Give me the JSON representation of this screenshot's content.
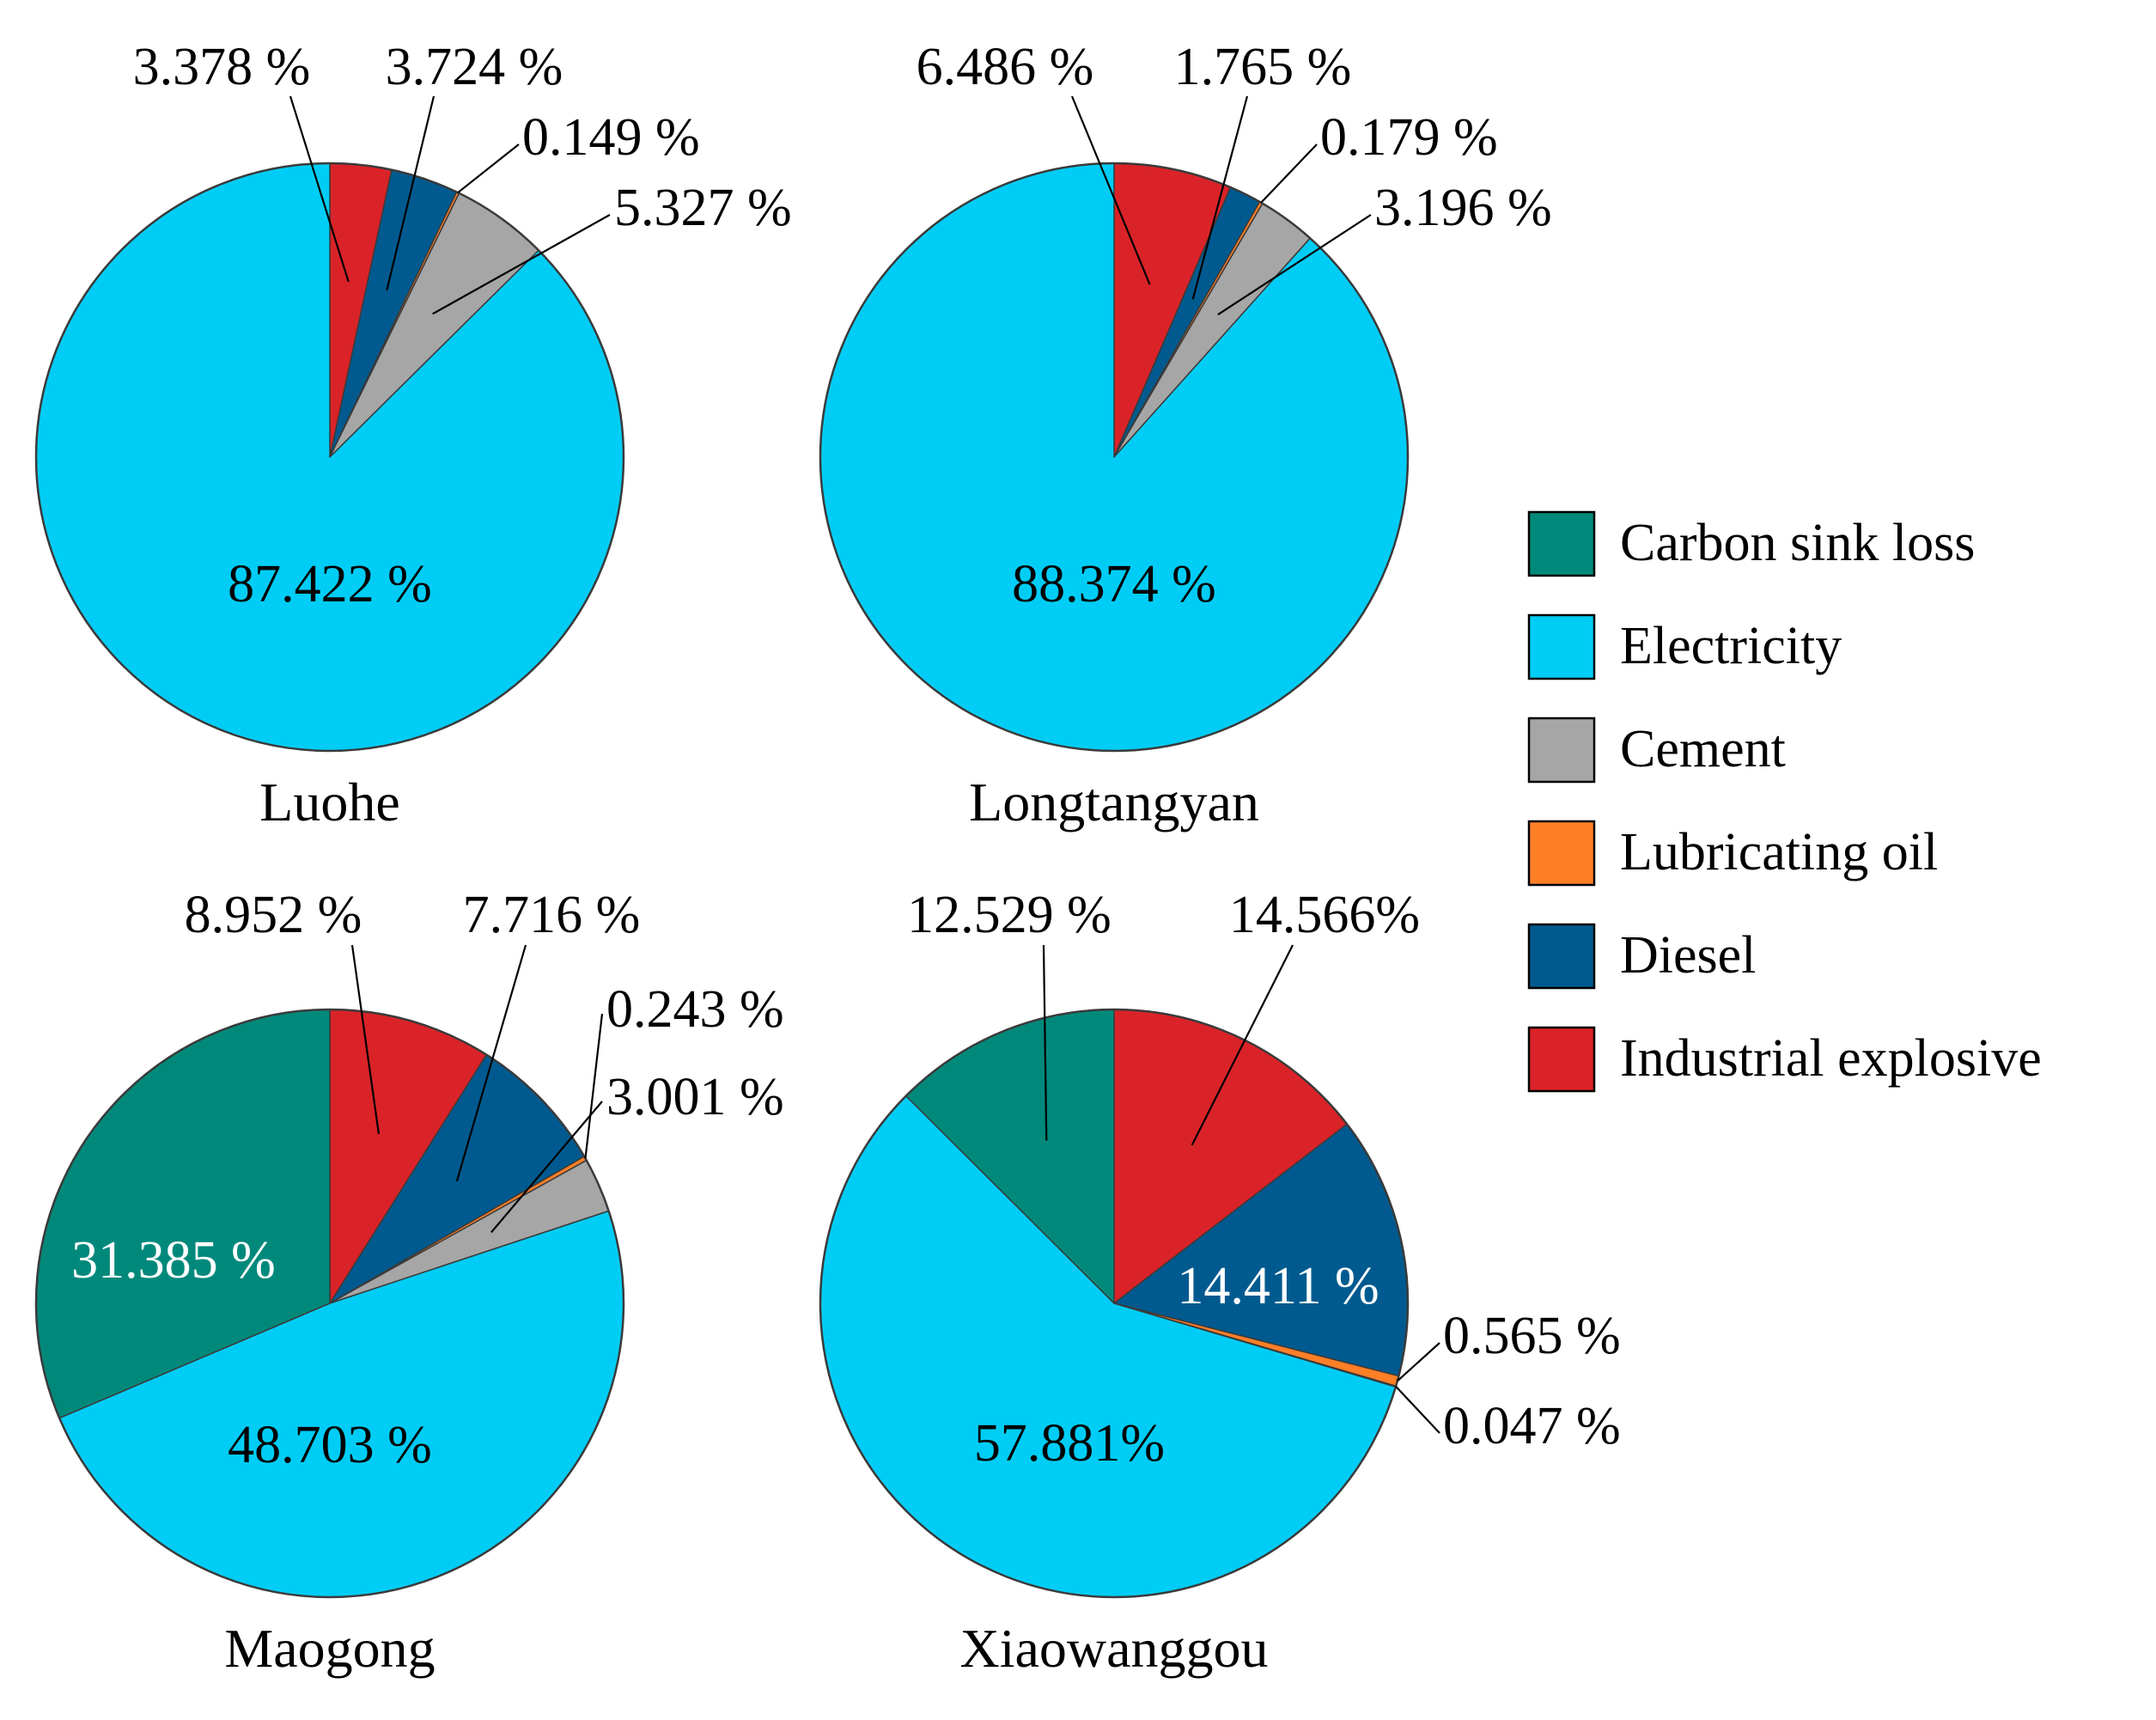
{
  "colors": {
    "Carbon sink loss": "#00897B",
    "Electricity": "#00CDF5",
    "Cement": "#A6A6A6",
    "Lubricating oil": "#FF7F27",
    "Diesel": "#005A8F",
    "Industrial explosive": "#DA2328"
  },
  "legend": [
    "Carbon sink loss",
    "Electricity",
    "Cement",
    "Lubricating oil",
    "Diesel",
    "Industrial explosive"
  ],
  "chart_data": [
    {
      "type": "pie",
      "title": "Luohe",
      "slices": [
        {
          "category": "Industrial explosive",
          "value": 3.378,
          "label": "3.378 %"
        },
        {
          "category": "Diesel",
          "value": 3.724,
          "label": "3.724 %"
        },
        {
          "category": "Lubricating oil",
          "value": 0.149,
          "label": "0.149 %"
        },
        {
          "category": "Cement",
          "value": 5.327,
          "label": "5.327 %"
        },
        {
          "category": "Electricity",
          "value": 87.422,
          "label": "87.422 %"
        }
      ]
    },
    {
      "type": "pie",
      "title": "Longtangyan",
      "slices": [
        {
          "category": "Industrial explosive",
          "value": 6.486,
          "label": "6.486 %"
        },
        {
          "category": "Diesel",
          "value": 1.765,
          "label": "1.765 %"
        },
        {
          "category": "Lubricating oil",
          "value": 0.179,
          "label": "0.179 %"
        },
        {
          "category": "Cement",
          "value": 3.196,
          "label": "3.196 %"
        },
        {
          "category": "Electricity",
          "value": 88.374,
          "label": "88.374 %"
        }
      ]
    },
    {
      "type": "pie",
      "title": "Maogong",
      "slices": [
        {
          "category": "Industrial explosive",
          "value": 8.952,
          "label": "8.952 %"
        },
        {
          "category": "Diesel",
          "value": 7.716,
          "label": "7.716 %"
        },
        {
          "category": "Lubricating oil",
          "value": 0.243,
          "label": "0.243 %"
        },
        {
          "category": "Cement",
          "value": 3.001,
          "label": "3.001 %"
        },
        {
          "category": "Electricity",
          "value": 48.703,
          "label": "48.703 %"
        },
        {
          "category": "Carbon sink loss",
          "value": 31.385,
          "label": "31.385 %"
        }
      ]
    },
    {
      "type": "pie",
      "title": "Xiaowanggou",
      "slices": [
        {
          "category": "Industrial explosive",
          "value": 14.566,
          "label": "14.566%"
        },
        {
          "category": "Diesel",
          "value": 14.411,
          "label": "14.411 %"
        },
        {
          "category": "Lubricating oil",
          "value": 0.565,
          "label": "0.565 %"
        },
        {
          "category": "Cement",
          "value": 0.047,
          "label": "0.047 %"
        },
        {
          "category": "Electricity",
          "value": 57.881,
          "label": "57.881%"
        },
        {
          "category": "Carbon sink loss",
          "value": 12.529,
          "label": "12.529 %"
        }
      ]
    }
  ]
}
